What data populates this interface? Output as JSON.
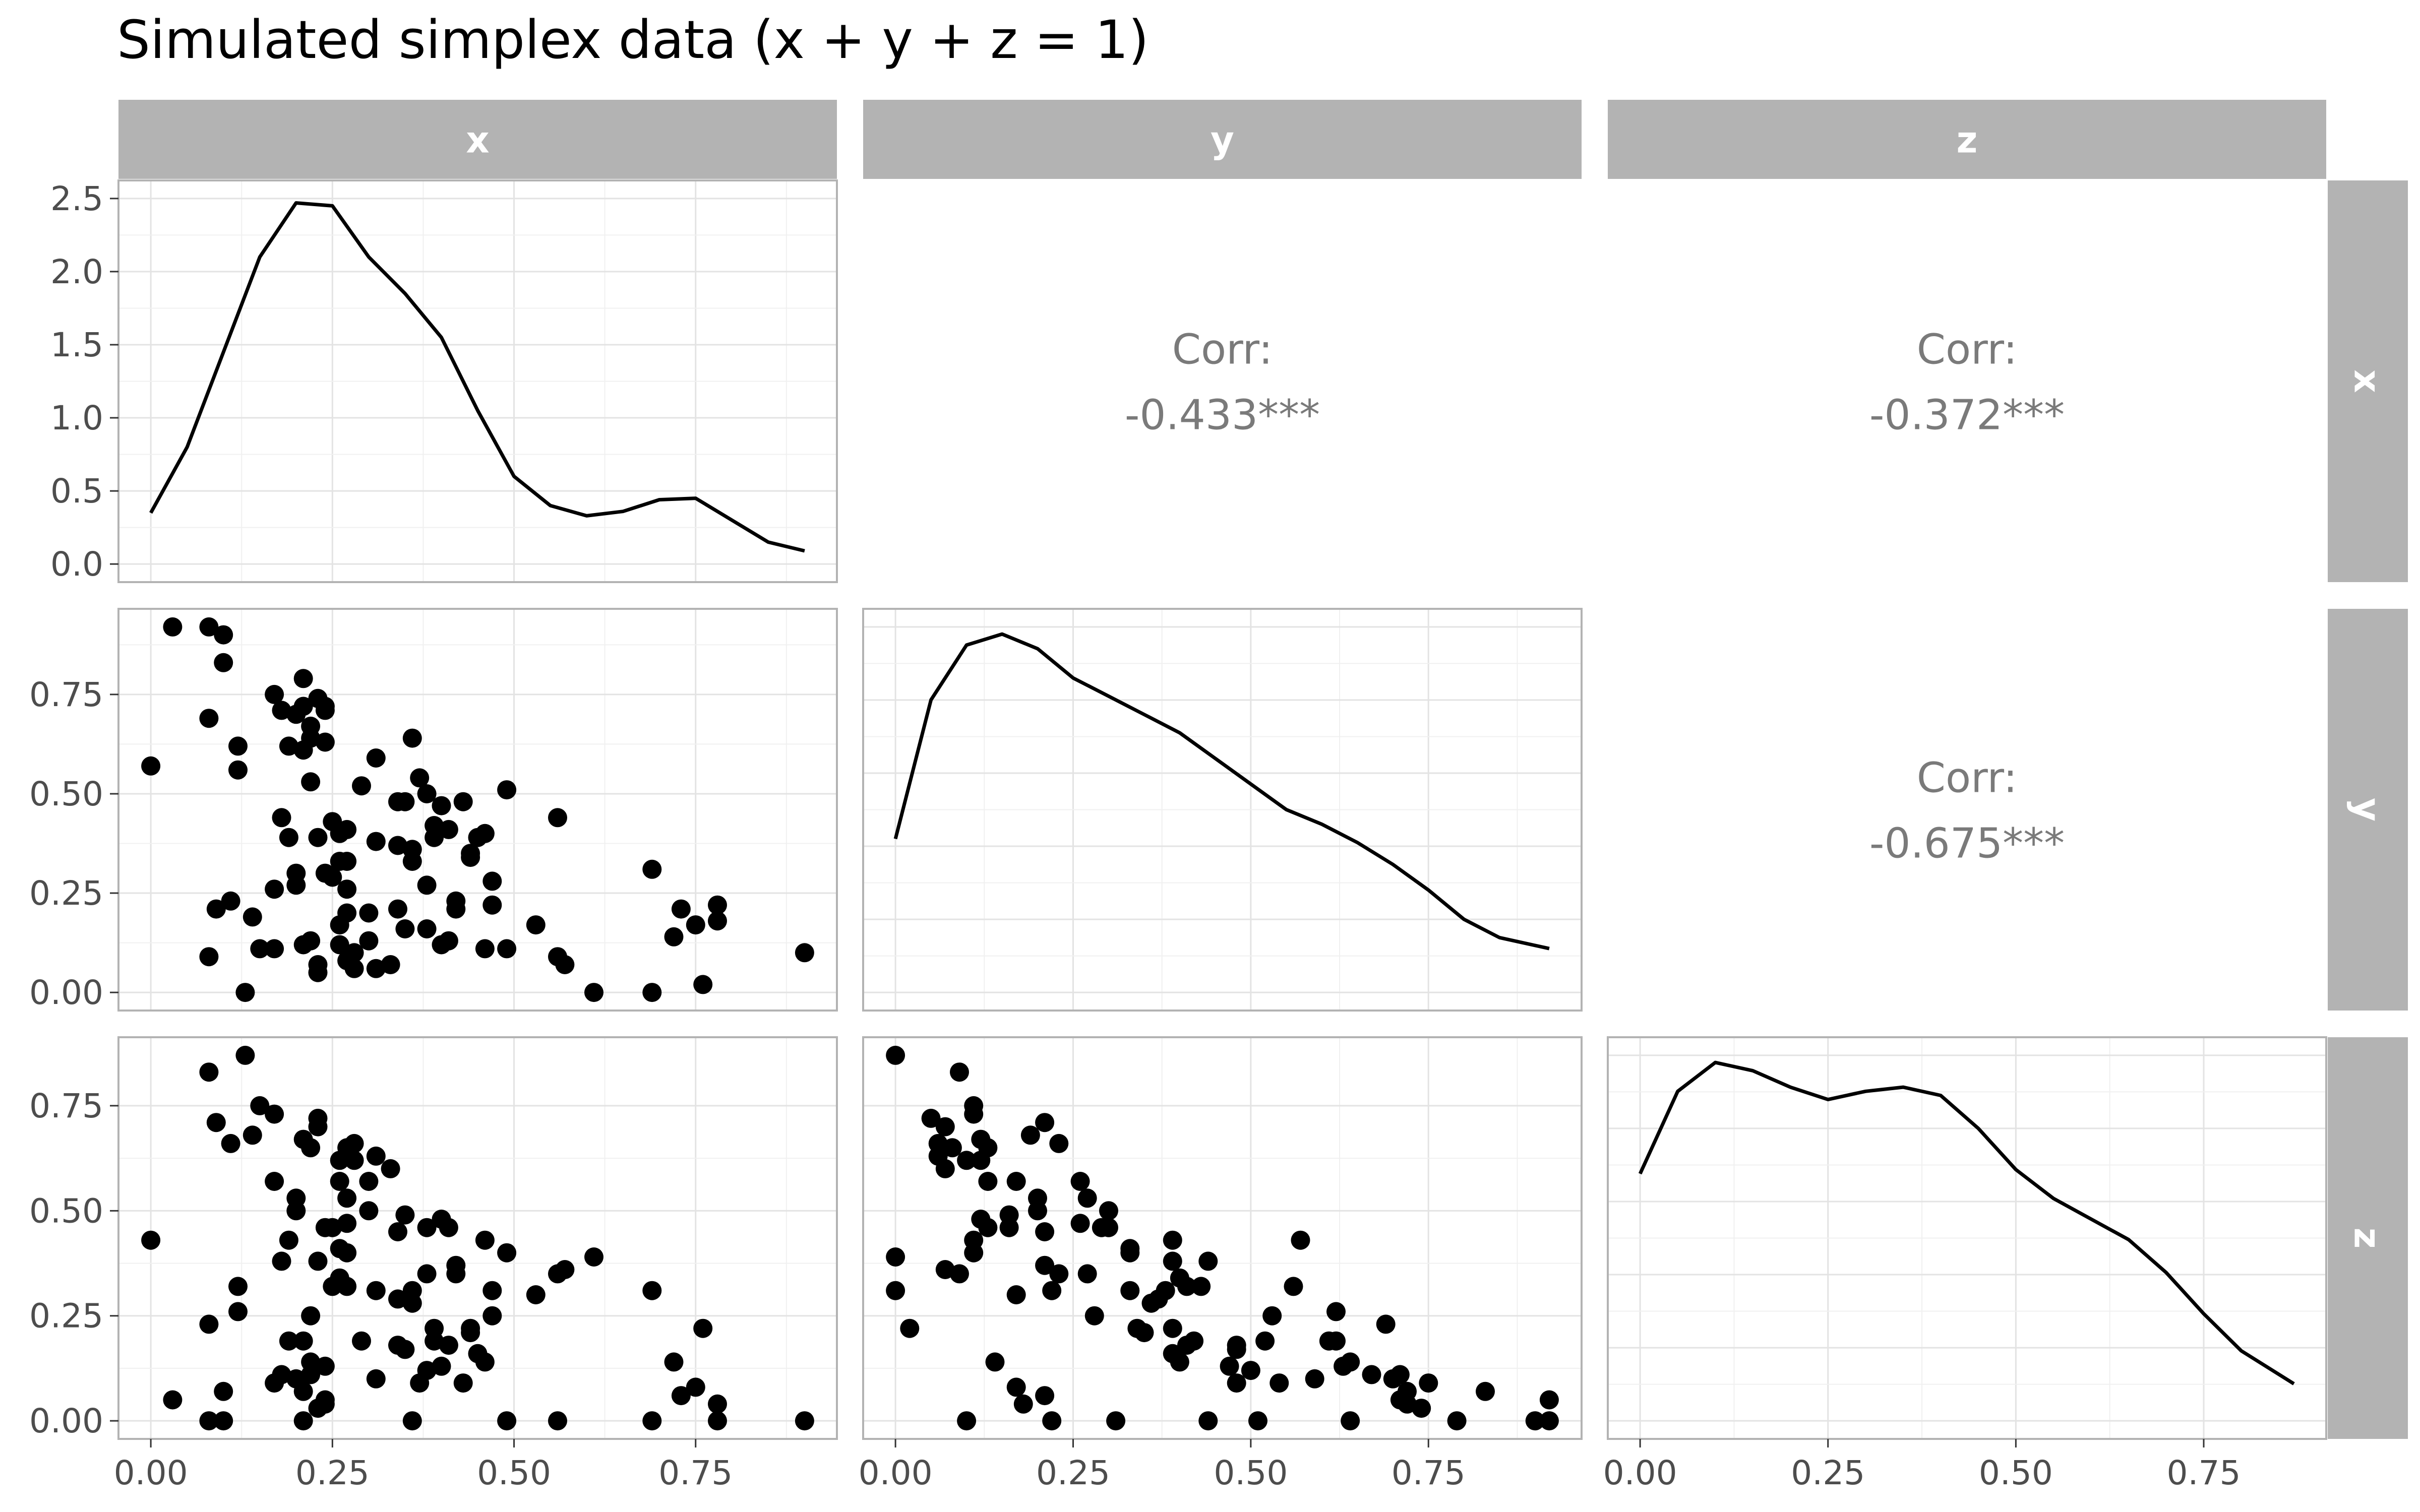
{
  "chart_data": {
    "type": "scatter-matrix",
    "title": "Simulated simplex data (x + y + z = 1)",
    "variables": [
      "x",
      "y",
      "z"
    ],
    "ranges": {
      "x": [
        0,
        0.9
      ],
      "y": [
        0,
        0.92
      ],
      "z": [
        0,
        0.87
      ]
    },
    "density_ylim": [
      0,
      2.5
    ],
    "density_y_ticks": [
      "0.0",
      "0.5",
      "1.0",
      "1.5",
      "2.0",
      "2.5"
    ],
    "x_ticks": {
      "x": [
        "0.00",
        "0.25",
        "0.50",
        "0.75"
      ],
      "y": [
        "0.00",
        "0.25",
        "0.50",
        "0.75"
      ],
      "z": [
        "0.00",
        "0.25",
        "0.50",
        "0.75"
      ]
    },
    "y_ticks": {
      "y": [
        "0.00",
        "0.25",
        "0.50",
        "0.75"
      ],
      "z": [
        "0.00",
        "0.25",
        "0.50",
        "0.75"
      ]
    },
    "correlations": [
      {
        "row": "x",
        "col": "y",
        "label": "Corr:",
        "value": "-0.433***"
      },
      {
        "row": "x",
        "col": "z",
        "label": "Corr:",
        "value": "-0.372***"
      },
      {
        "row": "y",
        "col": "z",
        "label": "Corr:",
        "value": "-0.675***"
      }
    ],
    "densities": {
      "x": [
        [
          0.0,
          0.35
        ],
        [
          0.05,
          0.8
        ],
        [
          0.1,
          1.45
        ],
        [
          0.15,
          2.1
        ],
        [
          0.2,
          2.47
        ],
        [
          0.25,
          2.45
        ],
        [
          0.3,
          2.1
        ],
        [
          0.35,
          1.85
        ],
        [
          0.4,
          1.55
        ],
        [
          0.45,
          1.05
        ],
        [
          0.5,
          0.6
        ],
        [
          0.55,
          0.4
        ],
        [
          0.6,
          0.33
        ],
        [
          0.65,
          0.36
        ],
        [
          0.7,
          0.44
        ],
        [
          0.75,
          0.45
        ],
        [
          0.8,
          0.3
        ],
        [
          0.85,
          0.15
        ],
        [
          0.9,
          0.09
        ]
      ],
      "y": [
        [
          0.0,
          0.42
        ],
        [
          0.05,
          0.8
        ],
        [
          0.1,
          0.95
        ],
        [
          0.15,
          0.98
        ],
        [
          0.2,
          0.94
        ],
        [
          0.25,
          0.86
        ],
        [
          0.3,
          0.81
        ],
        [
          0.35,
          0.76
        ],
        [
          0.4,
          0.71
        ],
        [
          0.45,
          0.64
        ],
        [
          0.5,
          0.57
        ],
        [
          0.55,
          0.5
        ],
        [
          0.6,
          0.46
        ],
        [
          0.65,
          0.41
        ],
        [
          0.7,
          0.35
        ],
        [
          0.75,
          0.28
        ],
        [
          0.8,
          0.2
        ],
        [
          0.85,
          0.15
        ],
        [
          0.92,
          0.12
        ]
      ],
      "z": [
        [
          0.0,
          0.6
        ],
        [
          0.05,
          0.8
        ],
        [
          0.1,
          0.87
        ],
        [
          0.15,
          0.85
        ],
        [
          0.2,
          0.81
        ],
        [
          0.25,
          0.78
        ],
        [
          0.3,
          0.8
        ],
        [
          0.35,
          0.81
        ],
        [
          0.4,
          0.79
        ],
        [
          0.45,
          0.71
        ],
        [
          0.5,
          0.61
        ],
        [
          0.55,
          0.54
        ],
        [
          0.6,
          0.49
        ],
        [
          0.65,
          0.44
        ],
        [
          0.7,
          0.36
        ],
        [
          0.75,
          0.26
        ],
        [
          0.8,
          0.17
        ],
        [
          0.87,
          0.09
        ]
      ]
    },
    "points": [
      [
        0.0,
        0.57,
        0.43
      ],
      [
        0.03,
        0.92,
        0.05
      ],
      [
        0.08,
        0.92,
        0.0
      ],
      [
        0.1,
        0.9,
        0.0
      ],
      [
        0.1,
        0.83,
        0.07
      ],
      [
        0.08,
        0.69,
        0.23
      ],
      [
        0.12,
        0.62,
        0.26
      ],
      [
        0.12,
        0.56,
        0.32
      ],
      [
        0.08,
        0.09,
        0.83
      ],
      [
        0.09,
        0.21,
        0.71
      ],
      [
        0.11,
        0.23,
        0.66
      ],
      [
        0.13,
        0.0,
        0.87
      ],
      [
        0.14,
        0.19,
        0.68
      ],
      [
        0.15,
        0.11,
        0.75
      ],
      [
        0.17,
        0.11,
        0.73
      ],
      [
        0.17,
        0.26,
        0.57
      ],
      [
        0.17,
        0.75,
        0.09
      ],
      [
        0.18,
        0.71,
        0.11
      ],
      [
        0.18,
        0.44,
        0.38
      ],
      [
        0.19,
        0.39,
        0.43
      ],
      [
        0.19,
        0.62,
        0.19
      ],
      [
        0.2,
        0.7,
        0.1
      ],
      [
        0.21,
        0.61,
        0.19
      ],
      [
        0.2,
        0.27,
        0.53
      ],
      [
        0.2,
        0.3,
        0.5
      ],
      [
        0.21,
        0.72,
        0.07
      ],
      [
        0.21,
        0.79,
        0.0
      ],
      [
        0.21,
        0.12,
        0.67
      ],
      [
        0.22,
        0.13,
        0.65
      ],
      [
        0.22,
        0.53,
        0.25
      ],
      [
        0.22,
        0.64,
        0.14
      ],
      [
        0.22,
        0.67,
        0.11
      ],
      [
        0.23,
        0.74,
        0.03
      ],
      [
        0.23,
        0.39,
        0.38
      ],
      [
        0.23,
        0.07,
        0.7
      ],
      [
        0.23,
        0.05,
        0.72
      ],
      [
        0.24,
        0.3,
        0.46
      ],
      [
        0.24,
        0.72,
        0.04
      ],
      [
        0.24,
        0.63,
        0.13
      ],
      [
        0.24,
        0.71,
        0.05
      ],
      [
        0.25,
        0.43,
        0.32
      ],
      [
        0.25,
        0.29,
        0.46
      ],
      [
        0.26,
        0.4,
        0.34
      ],
      [
        0.26,
        0.12,
        0.62
      ],
      [
        0.26,
        0.17,
        0.57
      ],
      [
        0.26,
        0.33,
        0.41
      ],
      [
        0.27,
        0.2,
        0.53
      ],
      [
        0.27,
        0.26,
        0.47
      ],
      [
        0.27,
        0.41,
        0.32
      ],
      [
        0.27,
        0.33,
        0.4
      ],
      [
        0.27,
        0.08,
        0.65
      ],
      [
        0.28,
        0.1,
        0.62
      ],
      [
        0.28,
        0.06,
        0.66
      ],
      [
        0.29,
        0.52,
        0.19
      ],
      [
        0.3,
        0.2,
        0.5
      ],
      [
        0.3,
        0.13,
        0.57
      ],
      [
        0.31,
        0.59,
        0.1
      ],
      [
        0.31,
        0.38,
        0.31
      ],
      [
        0.31,
        0.06,
        0.63
      ],
      [
        0.33,
        0.07,
        0.6
      ],
      [
        0.34,
        0.21,
        0.45
      ],
      [
        0.34,
        0.48,
        0.18
      ],
      [
        0.34,
        0.37,
        0.29
      ],
      [
        0.35,
        0.16,
        0.49
      ],
      [
        0.35,
        0.48,
        0.17
      ],
      [
        0.36,
        0.64,
        0.0
      ],
      [
        0.36,
        0.36,
        0.28
      ],
      [
        0.36,
        0.33,
        0.31
      ],
      [
        0.37,
        0.54,
        0.09
      ],
      [
        0.38,
        0.5,
        0.12
      ],
      [
        0.38,
        0.27,
        0.35
      ],
      [
        0.38,
        0.16,
        0.46
      ],
      [
        0.39,
        0.42,
        0.19
      ],
      [
        0.39,
        0.39,
        0.22
      ],
      [
        0.4,
        0.12,
        0.48
      ],
      [
        0.4,
        0.47,
        0.13
      ],
      [
        0.41,
        0.13,
        0.46
      ],
      [
        0.41,
        0.41,
        0.18
      ],
      [
        0.42,
        0.23,
        0.35
      ],
      [
        0.42,
        0.21,
        0.37
      ],
      [
        0.43,
        0.48,
        0.09
      ],
      [
        0.44,
        0.34,
        0.22
      ],
      [
        0.44,
        0.35,
        0.21
      ],
      [
        0.45,
        0.39,
        0.16
      ],
      [
        0.46,
        0.11,
        0.43
      ],
      [
        0.46,
        0.4,
        0.14
      ],
      [
        0.47,
        0.28,
        0.25
      ],
      [
        0.47,
        0.22,
        0.31
      ],
      [
        0.49,
        0.51,
        0.0
      ],
      [
        0.49,
        0.11,
        0.4
      ],
      [
        0.53,
        0.17,
        0.3
      ],
      [
        0.56,
        0.44,
        0.0
      ],
      [
        0.56,
        0.09,
        0.35
      ],
      [
        0.57,
        0.07,
        0.36
      ],
      [
        0.61,
        0.0,
        0.39
      ],
      [
        0.69,
        0.0,
        0.31
      ],
      [
        0.69,
        0.31,
        0.0
      ],
      [
        0.72,
        0.14,
        0.14
      ],
      [
        0.73,
        0.21,
        0.06
      ],
      [
        0.75,
        0.17,
        0.08
      ],
      [
        0.76,
        0.02,
        0.22
      ],
      [
        0.78,
        0.22,
        0.0
      ],
      [
        0.78,
        0.18,
        0.04
      ],
      [
        0.9,
        0.1,
        0.0
      ]
    ]
  }
}
